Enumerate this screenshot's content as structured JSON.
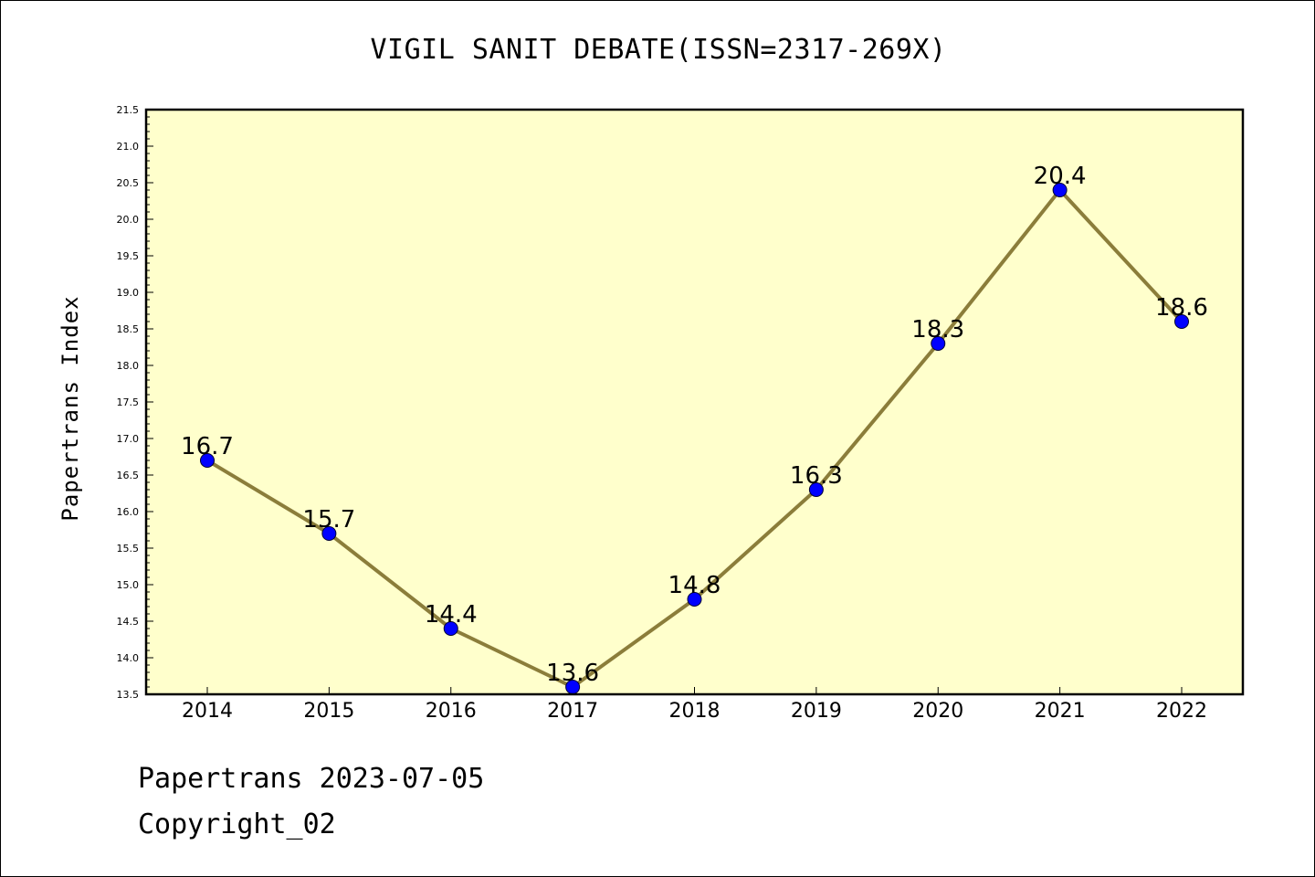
{
  "chart_data": {
    "type": "line",
    "title": "VIGIL SANIT DEBATE(ISSN=2317-269X)",
    "ylabel": "Papertrans Index",
    "xlabel": "",
    "categories": [
      "2014",
      "2015",
      "2016",
      "2017",
      "2018",
      "2019",
      "2020",
      "2021",
      "2022"
    ],
    "values": [
      16.7,
      15.7,
      14.4,
      13.6,
      14.8,
      16.3,
      18.3,
      20.4,
      18.6
    ],
    "data_labels": [
      "16.7",
      "15.7",
      "14.4",
      "13.6",
      "14.8",
      "16.3",
      "18.3",
      "20.4",
      "18.6"
    ],
    "ylim": [
      13.5,
      21.5
    ],
    "yticks": [
      "13.5",
      "14.0",
      "14.5",
      "15.0",
      "15.5",
      "16.0",
      "16.5",
      "17.0",
      "17.5",
      "18.0",
      "18.5",
      "19.0",
      "19.5",
      "20.0",
      "20.5",
      "21.0",
      "21.5"
    ],
    "plot_background": "#ffffcc",
    "line_color": "#8b7d3a",
    "marker_color": "#0000ff",
    "grid": false,
    "legend": "none"
  },
  "footer": {
    "line1": "Papertrans 2023-07-05",
    "line2": "Copyright_02"
  }
}
